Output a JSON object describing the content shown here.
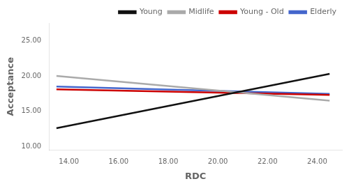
{
  "chart_data": {
    "type": "line",
    "xlabel": "RDC",
    "ylabel": "Acceptance",
    "x": [
      13.5,
      24.5
    ],
    "series": [
      {
        "name": "Young",
        "color": "#111111",
        "values": [
          12.6,
          20.3
        ]
      },
      {
        "name": "Midlife",
        "color": "#aaaaaa",
        "values": [
          20.0,
          16.5
        ]
      },
      {
        "name": "Young - Old",
        "color": "#cc0000",
        "values": [
          18.1,
          17.3
        ]
      },
      {
        "name": "Elderly",
        "color": "#4466cc",
        "values": [
          18.5,
          17.45
        ]
      }
    ],
    "xlim": [
      13.2,
      25.0
    ],
    "ylim": [
      9.5,
      27.5
    ],
    "xticks": [
      {
        "value": 14.0,
        "label": "14.00"
      },
      {
        "value": 16.0,
        "label": "16.00"
      },
      {
        "value": 18.0,
        "label": "18.00"
      },
      {
        "value": 20.0,
        "label": "20.00"
      },
      {
        "value": 22.0,
        "label": "22.00"
      },
      {
        "value": 24.0,
        "label": "24.00"
      }
    ],
    "yticks": [
      {
        "value": 10.0,
        "label": "10.00"
      },
      {
        "value": 15.0,
        "label": "15.00"
      },
      {
        "value": 20.0,
        "label": "20.00"
      },
      {
        "value": 25.0,
        "label": "25.00"
      }
    ],
    "grid": false,
    "legend": "upper right"
  }
}
